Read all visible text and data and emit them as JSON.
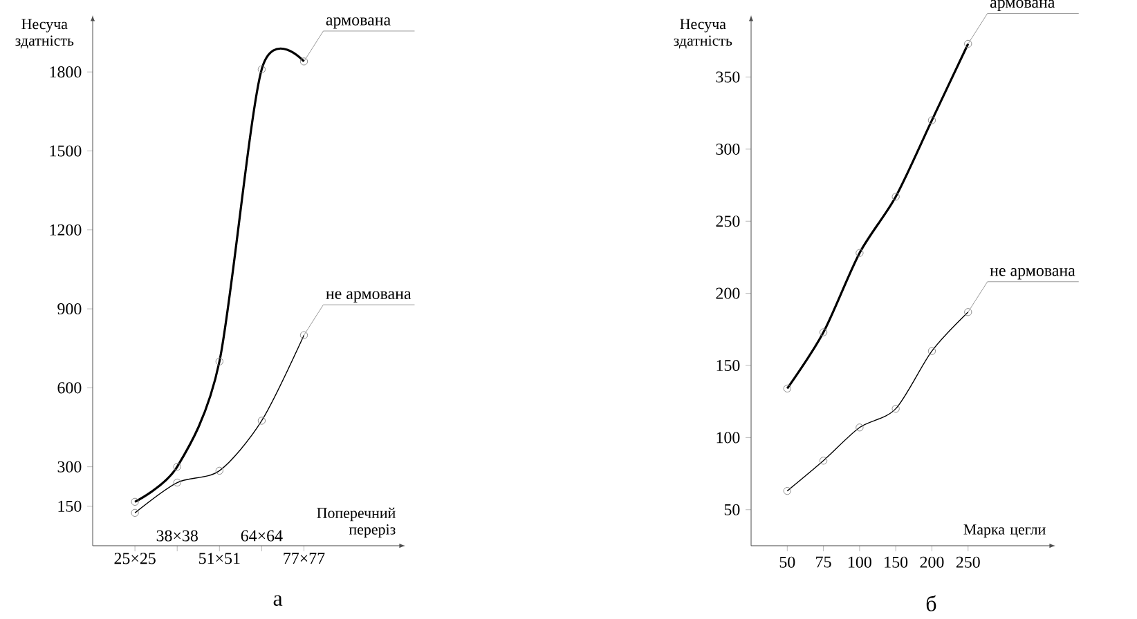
{
  "chart_data": [
    {
      "type": "line",
      "title": "а",
      "xlabel": "Поперечний переріз",
      "ylabel": "Несуча здатність",
      "categories": [
        "25×25",
        "38×38",
        "51×51",
        "64×64",
        "77×77"
      ],
      "ylim": [
        0,
        2000
      ],
      "yticks": [
        150,
        300,
        600,
        900,
        1200,
        1500,
        1800
      ],
      "marker": "circle",
      "series": [
        {
          "name": "армована",
          "color": "#000000",
          "values": [
            167,
            300,
            700,
            1810,
            1840
          ]
        },
        {
          "name": "не армована",
          "color": "#000000",
          "values": [
            125,
            240,
            285,
            475,
            800
          ]
        }
      ]
    },
    {
      "type": "line",
      "title": "б",
      "xlabel": "Марка цегли",
      "ylabel": "Несуча здатність",
      "categories": [
        "50",
        "75",
        "100",
        "150",
        "200",
        "250"
      ],
      "ylim": [
        25,
        390
      ],
      "yticks": [
        50,
        100,
        150,
        200,
        250,
        300,
        350
      ],
      "marker": "circle",
      "series": [
        {
          "name": "армована",
          "color": "#000000",
          "values": [
            134,
            173,
            228,
            267,
            320,
            373
          ]
        },
        {
          "name": "не армована",
          "color": "#000000",
          "values": [
            63,
            84,
            107,
            120,
            160,
            187
          ]
        }
      ]
    }
  ]
}
